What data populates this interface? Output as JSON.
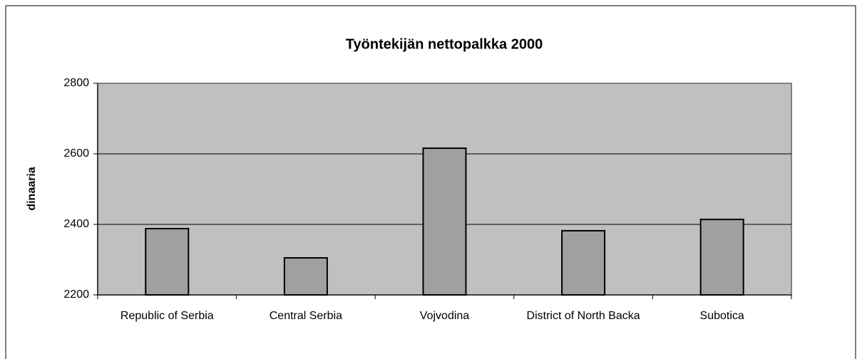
{
  "chart_data": {
    "type": "bar",
    "title": "Työntekijän nettopalkka 2000",
    "y_label": "dinaaria",
    "categories": [
      "Republic of Serbia",
      "Central Serbia",
      "Vojvodina",
      "District of North Backa",
      "Subotica"
    ],
    "values": [
      2388,
      2305,
      2616,
      2382,
      2414
    ],
    "color": "#a0a0a0",
    "plot_background": "#c0c0c0",
    "ylim": [
      2200,
      2800
    ],
    "yticks": [
      2200,
      2400,
      2600,
      2800
    ],
    "grid": true
  }
}
